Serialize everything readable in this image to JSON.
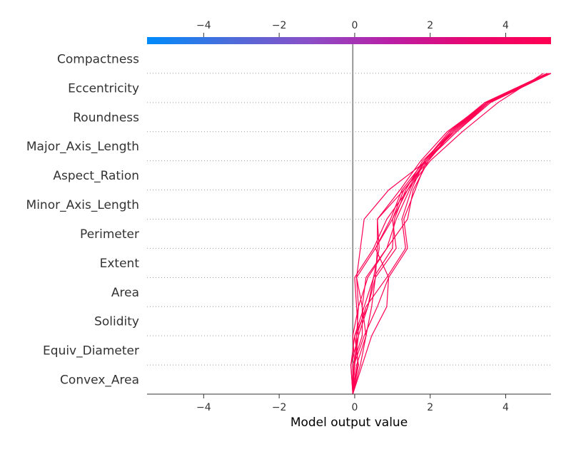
{
  "chart_data": {
    "type": "line",
    "xlabel": "Model output value",
    "xlim": [
      -5.5,
      5.2
    ],
    "base_value": -0.05,
    "xticks": [
      -4,
      -2,
      0,
      2,
      4
    ],
    "tick_labels": [
      "−4",
      "−2",
      "0",
      "2",
      "4"
    ],
    "features": [
      "Compactness",
      "Eccentricity",
      "Roundness",
      "Major_Axis_Length",
      "Aspect_Ration",
      "Minor_Axis_Length",
      "Perimeter",
      "Extent",
      "Area",
      "Solidity",
      "Equiv_Diameter",
      "Convex_Area"
    ],
    "colorbar": {
      "min": -5.5,
      "max": 5.2,
      "colors": [
        "#008bfb",
        "#4a6ddb",
        "#8a4fc7",
        "#b91fa6",
        "#e8066f",
        "#ff0052"
      ]
    },
    "line_color": "#ff0052",
    "series": [
      {
        "values": [
          -0.05,
          -0.02,
          0.25,
          0.6,
          0.9,
          1.4,
          1.3,
          1.6,
          1.9,
          2.6,
          3.5,
          5.15
        ]
      },
      {
        "values": [
          -0.05,
          0.08,
          0.05,
          0.3,
          0.85,
          1.35,
          1.25,
          1.5,
          1.85,
          2.5,
          3.45,
          5.1
        ]
      },
      {
        "values": [
          -0.05,
          -0.1,
          0.0,
          0.35,
          0.5,
          1.0,
          1.05,
          1.35,
          1.8,
          2.6,
          3.5,
          5.15
        ]
      },
      {
        "values": [
          -0.05,
          0.15,
          0.3,
          0.45,
          0.55,
          0.6,
          0.6,
          1.2,
          1.75,
          2.45,
          3.5,
          5.1
        ]
      },
      {
        "values": [
          -0.05,
          0.0,
          0.1,
          0.05,
          0.0,
          0.5,
          0.85,
          1.4,
          1.85,
          2.65,
          3.55,
          5.15
        ]
      },
      {
        "values": [
          -0.05,
          0.0,
          -0.05,
          0.1,
          0.05,
          0.15,
          0.25,
          0.9,
          1.9,
          2.7,
          3.6,
          5.2
        ]
      },
      {
        "values": [
          -0.05,
          0.2,
          0.45,
          0.85,
          0.9,
          0.55,
          1.0,
          1.4,
          2.0,
          2.85,
          3.8,
          5.0
        ]
      },
      {
        "values": [
          -0.05,
          -0.1,
          0.1,
          0.35,
          0.55,
          1.1,
          1.0,
          1.3,
          1.95,
          2.55,
          3.5,
          5.15
        ]
      },
      {
        "values": [
          -0.05,
          0.05,
          0.3,
          0.2,
          0.3,
          0.85,
          1.4,
          1.55,
          1.95,
          2.6,
          3.55,
          5.15
        ]
      },
      {
        "values": [
          -0.05,
          -0.05,
          0.2,
          0.2,
          0.05,
          0.55,
          0.95,
          1.25,
          1.85,
          2.55,
          3.5,
          5.1
        ]
      },
      {
        "values": [
          -0.05,
          0.1,
          0.0,
          0.25,
          0.5,
          0.65,
          0.6,
          1.3,
          1.9,
          2.7,
          3.55,
          5.2
        ]
      },
      {
        "values": [
          -0.05,
          0.0,
          0.05,
          0.1,
          0.35,
          0.85,
          1.1,
          1.45,
          1.85,
          2.5,
          3.5,
          5.1
        ]
      }
    ]
  }
}
